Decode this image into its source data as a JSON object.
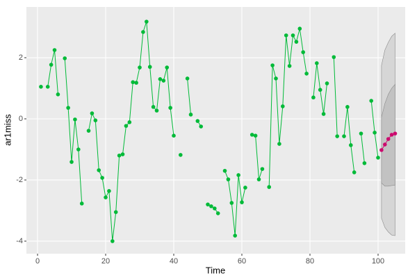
{
  "chart_data": {
    "type": "line",
    "x_label": "Time",
    "y_label": "ar1miss",
    "xlim": [
      -3.27,
      107.96
    ],
    "ylim": [
      -4.41,
      3.66
    ],
    "xticks": [
      0,
      20,
      40,
      60,
      80,
      100
    ],
    "yticks": [
      -4,
      -2,
      0,
      2
    ],
    "grid": true,
    "series": [
      {
        "color": "#00ba38",
        "x": [
          1,
          2,
          3,
          4,
          5,
          6,
          7,
          8,
          9,
          10,
          11,
          12,
          13,
          14,
          15,
          16,
          17,
          18,
          19,
          20,
          21,
          22,
          23,
          24,
          25,
          26,
          27,
          28,
          29,
          30,
          31,
          32,
          33,
          34,
          35,
          36,
          37,
          38,
          39,
          40,
          41,
          42,
          43,
          44,
          45,
          46,
          47,
          48,
          49,
          50,
          51,
          52,
          53,
          54,
          55,
          56,
          57,
          58,
          59,
          60,
          61,
          62,
          63,
          64,
          65,
          66,
          67,
          68,
          69,
          70,
          71,
          72,
          73,
          74,
          75,
          76,
          77,
          78,
          79,
          80,
          81,
          82,
          83,
          84,
          85,
          86,
          87,
          88,
          89,
          90,
          91,
          92,
          93,
          94,
          95,
          96,
          97,
          98,
          99,
          100
        ],
        "values": [
          1.05,
          null,
          1.05,
          1.77,
          2.25,
          0.8,
          null,
          1.98,
          0.36,
          -1.41,
          -0.02,
          -1.0,
          -2.77,
          null,
          -0.39,
          0.18,
          -0.05,
          -1.68,
          -1.93,
          -2.57,
          -2.36,
          -4.0,
          -3.05,
          -1.2,
          -1.16,
          -0.23,
          -0.11,
          1.2,
          1.18,
          1.68,
          2.84,
          3.18,
          1.7,
          0.39,
          0.27,
          1.3,
          1.25,
          1.68,
          0.36,
          -0.55,
          null,
          -1.18,
          null,
          1.32,
          0.14,
          null,
          -0.07,
          -0.25,
          null,
          -2.8,
          -2.86,
          -2.93,
          -3.09,
          null,
          -1.7,
          -1.98,
          -2.75,
          -3.82,
          -1.84,
          -2.73,
          -2.25,
          null,
          -0.52,
          -0.55,
          -1.98,
          -1.64,
          null,
          -2.23,
          1.75,
          1.32,
          -0.82,
          0.41,
          2.73,
          1.73,
          2.73,
          2.52,
          2.95,
          2.18,
          1.48,
          null,
          0.7,
          1.82,
          0.95,
          0.16,
          1.16,
          null,
          2.02,
          -0.57,
          null,
          -0.57,
          0.39,
          -0.86,
          -1.75,
          null,
          -0.48,
          -1.45,
          null,
          0.59,
          -0.45,
          -1.27
        ]
      },
      {
        "color": "#cc0a6e",
        "x": [
          101,
          102,
          103,
          104,
          105
        ],
        "values": [
          -1.02,
          -0.84,
          -0.66,
          -0.52,
          -0.48
        ]
      }
    ],
    "intervals": [
      {
        "x": [
          101,
          102,
          103,
          104,
          105
        ],
        "lower": [
          -3.25,
          -3.55,
          -3.7,
          -3.8,
          -3.82
        ],
        "upper": [
          1.75,
          2.25,
          2.5,
          2.7,
          2.8
        ],
        "color": "#d6d6d6"
      },
      {
        "x": [
          101,
          102,
          103,
          104,
          105
        ],
        "lower": [
          -2.1,
          -2.2,
          -2.2,
          -2.18,
          -2.17
        ],
        "upper": [
          0.05,
          0.5,
          0.8,
          1.0,
          1.13
        ],
        "color": "#c2c2c2"
      }
    ]
  }
}
